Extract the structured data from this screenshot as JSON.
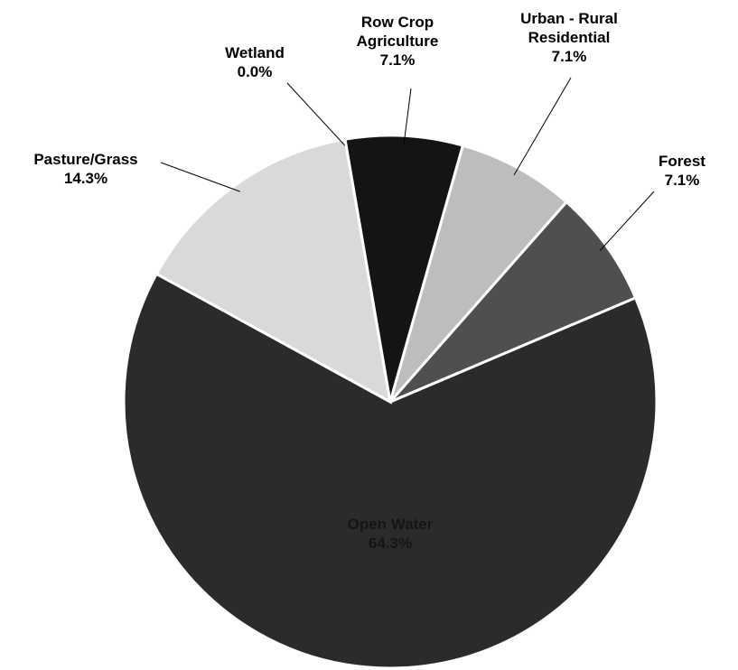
{
  "chart_data": {
    "type": "pie",
    "categories": [
      "Open Water",
      "Pasture/Grass",
      "Wetland",
      "Row Crop Agriculture",
      "Urban - Rural Residential",
      "Forest"
    ],
    "values": [
      64.3,
      14.3,
      0,
      7.1,
      7.1,
      7.1
    ],
    "value_labels": [
      "64.3%",
      "14.3%",
      "0.0%",
      "7.1%",
      "7.1%",
      "7.1%"
    ],
    "colors": [
      "#2b2b2b",
      "#d9d9d9",
      "#ffffff",
      "#141414",
      "#bdbdbd",
      "#4f4f4f"
    ]
  }
}
